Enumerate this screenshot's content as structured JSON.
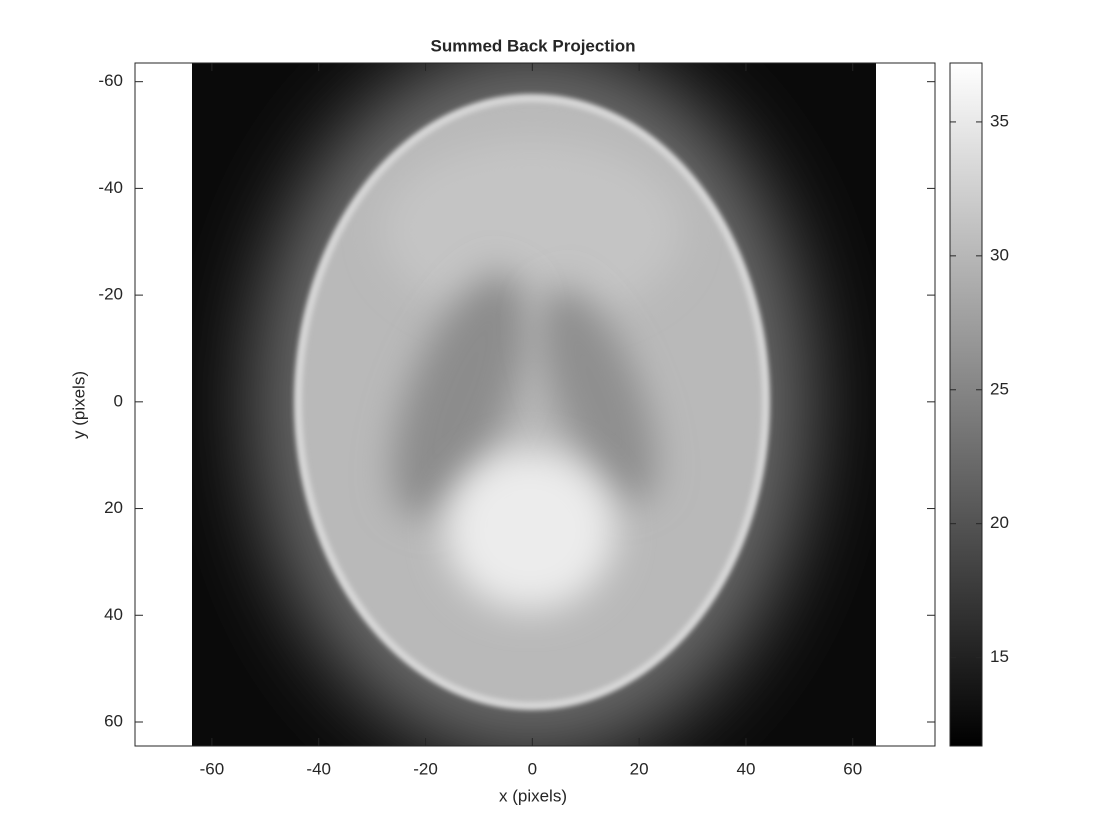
{
  "chart_data": {
    "type": "image",
    "title": "Summed Back Projection",
    "xlabel": "x (pixels)",
    "ylabel": "y (pixels)",
    "xlim": [
      -74.4,
      75.4
    ],
    "xticks": [
      -60,
      -40,
      -20,
      0,
      20,
      40,
      60
    ],
    "ylim": [
      -63.5,
      64.5
    ],
    "yticks": [
      -60,
      -40,
      -20,
      0,
      20,
      40,
      60
    ],
    "y_reversed": true,
    "colormap": "gray",
    "clim": [
      11.7,
      37.2
    ],
    "cticks": [
      15,
      20,
      25,
      30,
      35
    ]
  }
}
